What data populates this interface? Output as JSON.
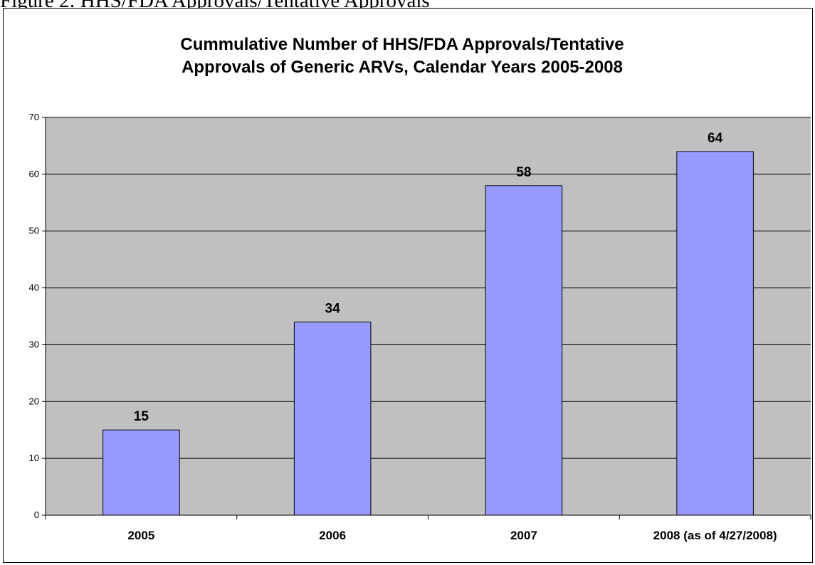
{
  "page": {
    "heading": "Figure 2: HHS/FDA Approvals/Tentative Approvals"
  },
  "chart_data": {
    "type": "bar",
    "title_lines": [
      "Cummulative Number of HHS/FDA Approvals/Tentative",
      "Approvals of Generic ARVs, Calendar Years 2005-2008"
    ],
    "categories": [
      "2005",
      "2006",
      "2007",
      "2008 (as of 4/27/2008)"
    ],
    "values": [
      15,
      34,
      58,
      64
    ],
    "data_labels": [
      "15",
      "34",
      "58",
      "64"
    ],
    "ylim": [
      0,
      70
    ],
    "yticks": [
      0,
      10,
      20,
      30,
      40,
      50,
      60,
      70
    ],
    "xlabel": "",
    "ylabel": "",
    "grid": true,
    "legend": "none",
    "colors": {
      "bar_fill": "#9999FF",
      "bar_stroke": "#000000",
      "plot_background": "#C0C0C0",
      "gridline": "#000000"
    }
  }
}
